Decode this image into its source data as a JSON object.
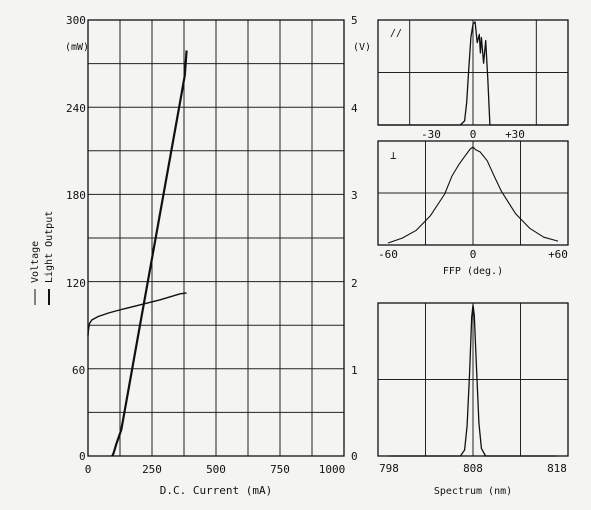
{
  "chart_data": [
    {
      "id": "iv_li",
      "type": "line",
      "xlabel": "D.C. Current (mA)",
      "left_unit": "(mW)",
      "right_unit": "(V)",
      "x_ticks": [
        "0",
        "250",
        "500",
        "750",
        "1000"
      ],
      "y_left_ticks": [
        "0",
        "60",
        "120",
        "180",
        "240",
        "300"
      ],
      "y_right_ticks": [
        "0",
        "1",
        "2",
        "3",
        "4",
        "5"
      ],
      "xlim": [
        0,
        1000
      ],
      "ylim_left": [
        0,
        300
      ],
      "ylim_right": [
        0,
        5
      ],
      "grid": true,
      "legend_position": "left, rotated",
      "series": [
        {
          "name": "Light Output",
          "axis": "left",
          "x": [
            95,
            100,
            110,
            130,
            200,
            300,
            360,
            378,
            385
          ],
          "y": [
            0,
            2,
            8,
            18,
            87,
            185,
            244,
            262,
            279
          ]
        },
        {
          "name": "Voltage",
          "axis": "right",
          "x": [
            0,
            2,
            6,
            15,
            40,
            80,
            130,
            200,
            280,
            360,
            385
          ],
          "y": [
            1.38,
            1.45,
            1.52,
            1.56,
            1.6,
            1.64,
            1.68,
            1.73,
            1.79,
            1.86,
            1.87
          ]
        }
      ]
    },
    {
      "id": "ffp_parallel",
      "type": "line",
      "marker": "//",
      "x_ticks": [
        "-30",
        "0",
        "+30"
      ],
      "xlim": [
        -45,
        45
      ],
      "ylim": [
        0,
        1
      ],
      "grid": true,
      "series": [
        {
          "x": [
            -45,
            -6,
            -4,
            -3,
            -2,
            -1,
            0,
            1,
            2,
            3,
            3.5,
            4,
            5,
            6,
            7,
            8,
            45
          ],
          "y": [
            0,
            0,
            0.04,
            0.22,
            0.55,
            0.85,
            0.98,
            1.0,
            0.8,
            0.88,
            0.7,
            0.85,
            0.6,
            0.82,
            0.45,
            0,
            0
          ]
        }
      ]
    },
    {
      "id": "ffp_perp",
      "type": "line",
      "marker": "⊥",
      "xlabel": "FFP (deg.)",
      "x_ticks": [
        "-60",
        "0",
        "+60"
      ],
      "xlim": [
        -60,
        60
      ],
      "ylim": [
        0,
        1
      ],
      "grid": true,
      "series": [
        {
          "x": [
            -60,
            -50,
            -40,
            -30,
            -20,
            -15,
            -10,
            -5,
            -2,
            0,
            2,
            5,
            10,
            15,
            20,
            30,
            40,
            50,
            60
          ],
          "y": [
            0.02,
            0.07,
            0.15,
            0.3,
            0.52,
            0.7,
            0.82,
            0.92,
            0.98,
            1.0,
            0.97,
            0.95,
            0.86,
            0.7,
            0.55,
            0.32,
            0.17,
            0.08,
            0.04
          ]
        }
      ]
    },
    {
      "id": "spectrum",
      "type": "line",
      "xlabel": "Spectrum (nm)",
      "x_ticks": [
        "798",
        "808",
        "818"
      ],
      "xlim": [
        798,
        818
      ],
      "ylim": [
        0,
        1
      ],
      "grid": true,
      "series": [
        {
          "x": [
            798,
            806.5,
            807,
            807.3,
            807.6,
            807.85,
            808,
            808.15,
            808.4,
            808.7,
            809,
            809.5,
            818
          ],
          "y": [
            0,
            0,
            0.04,
            0.2,
            0.55,
            0.92,
            1.0,
            0.93,
            0.6,
            0.22,
            0.05,
            0,
            0
          ]
        }
      ]
    }
  ]
}
